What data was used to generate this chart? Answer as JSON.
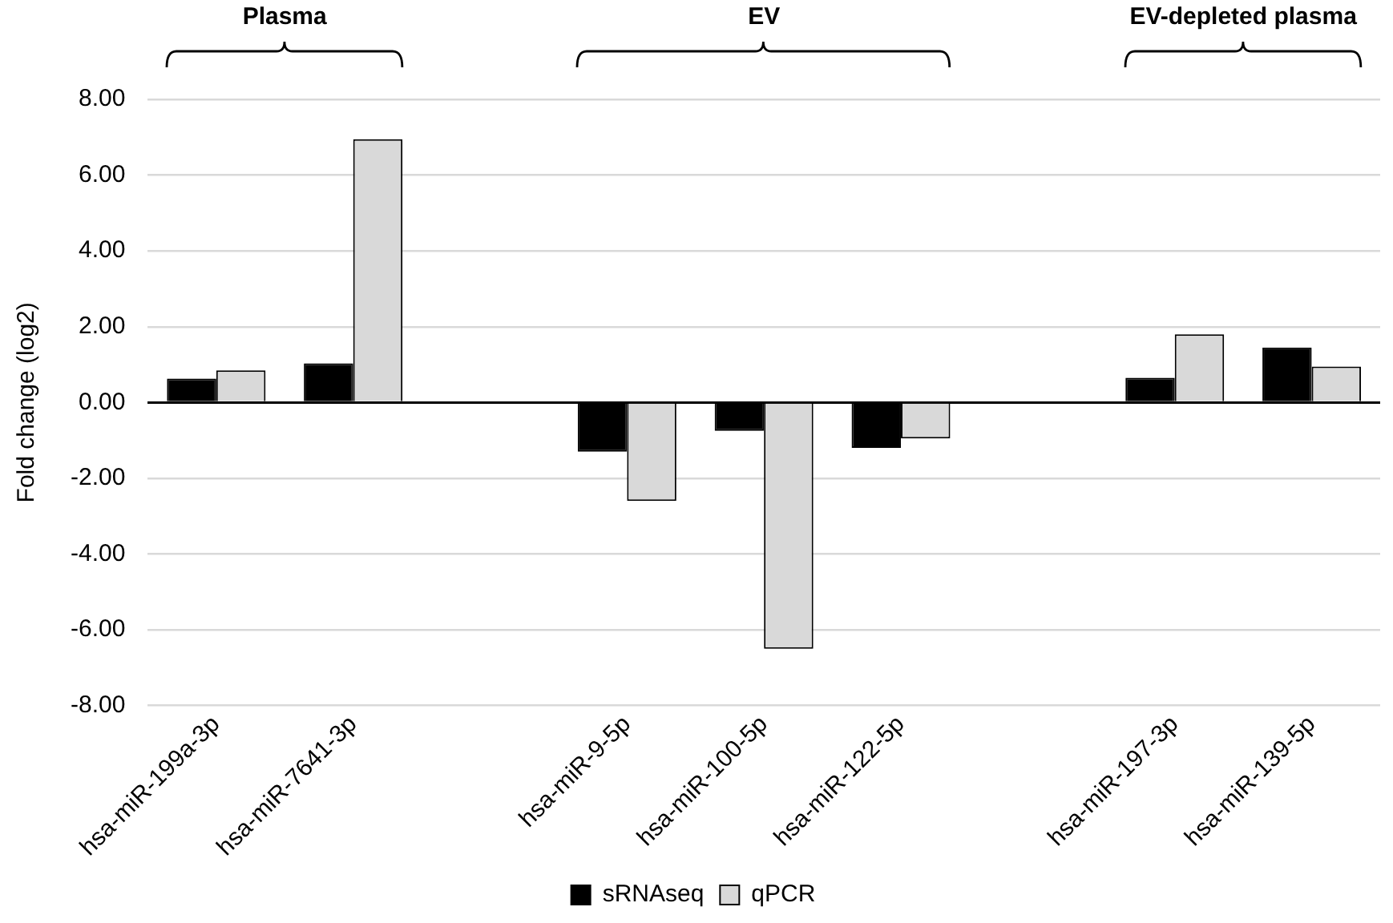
{
  "chart_data": {
    "type": "bar",
    "ylabel": "Fold change (log2)",
    "categories": [
      "hsa-miR-199a-3p",
      "hsa-miR-7641-3p",
      null,
      "hsa-miR-9-5p",
      "hsa-miR-100-5p",
      "hsa-miR-122-5p",
      null,
      "hsa-miR-197-3p",
      "hsa-miR-139-5p"
    ],
    "series": [
      {
        "name": "sRNAseq",
        "color": "#000000",
        "values": [
          0.63,
          1.03,
          null,
          -1.3,
          -0.75,
          -1.2,
          null,
          0.65,
          1.45
        ]
      },
      {
        "name": "qPCR",
        "color": "#d9d9d9",
        "values": [
          0.85,
          6.95,
          null,
          -2.6,
          -6.5,
          -0.95,
          null,
          1.8,
          0.95
        ]
      }
    ],
    "ylim": [
      -8,
      8
    ],
    "yticks": [
      {
        "value": -8,
        "label": "-8.00"
      },
      {
        "value": -6,
        "label": "-6.00"
      },
      {
        "value": -4,
        "label": "-4.00"
      },
      {
        "value": -2,
        "label": "-2.00"
      },
      {
        "value": 0,
        "label": "0.00"
      },
      {
        "value": 2,
        "label": "2.00"
      },
      {
        "value": 4,
        "label": "4.00"
      },
      {
        "value": 6,
        "label": "6.00"
      },
      {
        "value": 8,
        "label": "8.00"
      }
    ],
    "annotations": [
      "Plasma",
      "EV",
      "EV-depleted plasma"
    ],
    "grid": "y",
    "legend": "bottom"
  }
}
